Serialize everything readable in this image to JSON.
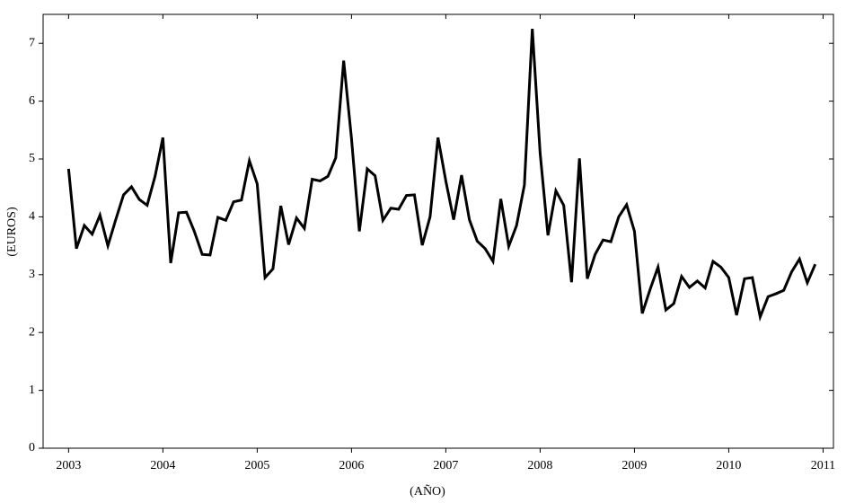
{
  "chart_data": {
    "type": "line",
    "x_label": "(AÑO)",
    "y_label": "(EUROS)",
    "x": [
      2003,
      2003.083,
      2003.167,
      2003.25,
      2003.333,
      2003.417,
      2003.5,
      2003.583,
      2003.667,
      2003.75,
      2003.833,
      2003.917,
      2004,
      2004.083,
      2004.167,
      2004.25,
      2004.333,
      2004.417,
      2004.5,
      2004.583,
      2004.667,
      2004.75,
      2004.833,
      2004.917,
      2005,
      2005.083,
      2005.167,
      2005.25,
      2005.333,
      2005.417,
      2005.5,
      2005.583,
      2005.667,
      2005.75,
      2005.833,
      2005.917,
      2006,
      2006.083,
      2006.167,
      2006.25,
      2006.333,
      2006.417,
      2006.5,
      2006.583,
      2006.667,
      2006.75,
      2006.833,
      2006.917,
      2007,
      2007.083,
      2007.167,
      2007.25,
      2007.333,
      2007.417,
      2007.5,
      2007.583,
      2007.667,
      2007.75,
      2007.833,
      2007.917,
      2008,
      2008.083,
      2008.167,
      2008.25,
      2008.333,
      2008.417,
      2008.5,
      2008.583,
      2008.667,
      2008.75,
      2008.833,
      2008.917,
      2009,
      2009.083,
      2009.167,
      2009.25,
      2009.333,
      2009.417,
      2009.5,
      2009.583,
      2009.667,
      2009.75,
      2009.833,
      2009.917,
      2010,
      2010.083,
      2010.167,
      2010.25,
      2010.333,
      2010.417,
      2010.5,
      2010.583,
      2010.667,
      2010.75,
      2010.833,
      2010.917
    ],
    "values": [
      4.83,
      3.45,
      3.85,
      3.7,
      4.03,
      3.5,
      3.95,
      4.38,
      4.52,
      4.3,
      4.2,
      4.7,
      5.37,
      3.2,
      4.07,
      4.08,
      3.75,
      3.35,
      3.34,
      3.99,
      3.94,
      4.26,
      4.29,
      4.97,
      4.57,
      2.95,
      3.1,
      4.19,
      3.52,
      3.98,
      3.8,
      4.65,
      4.62,
      4.7,
      5.02,
      6.7,
      5.35,
      3.75,
      4.83,
      4.71,
      3.94,
      4.15,
      4.13,
      4.37,
      4.38,
      3.51,
      4.0,
      5.37,
      4.62,
      3.95,
      4.72,
      3.95,
      3.58,
      3.45,
      3.23,
      4.31,
      3.49,
      3.85,
      4.55,
      7.25,
      5.1,
      3.68,
      4.45,
      4.2,
      2.87,
      5.01,
      2.93,
      3.35,
      3.6,
      3.57,
      4.0,
      4.21,
      3.75,
      2.33,
      2.75,
      3.13,
      2.39,
      2.5,
      2.97,
      2.78,
      2.89,
      2.77,
      3.23,
      3.13,
      2.95,
      2.3,
      2.93,
      2.95,
      2.27,
      2.62,
      2.67,
      2.73,
      3.05,
      3.27,
      2.86,
      3.18
    ],
    "color": "#000000",
    "xlim": [
      2002.73,
      2011.11
    ],
    "xticks": [
      2003,
      2004,
      2005,
      2006,
      2007,
      2008,
      2009,
      2010,
      2011
    ],
    "ylim": [
      0,
      7.5
    ],
    "yticks": [
      0,
      1,
      2,
      3,
      4,
      5,
      6,
      7
    ]
  }
}
